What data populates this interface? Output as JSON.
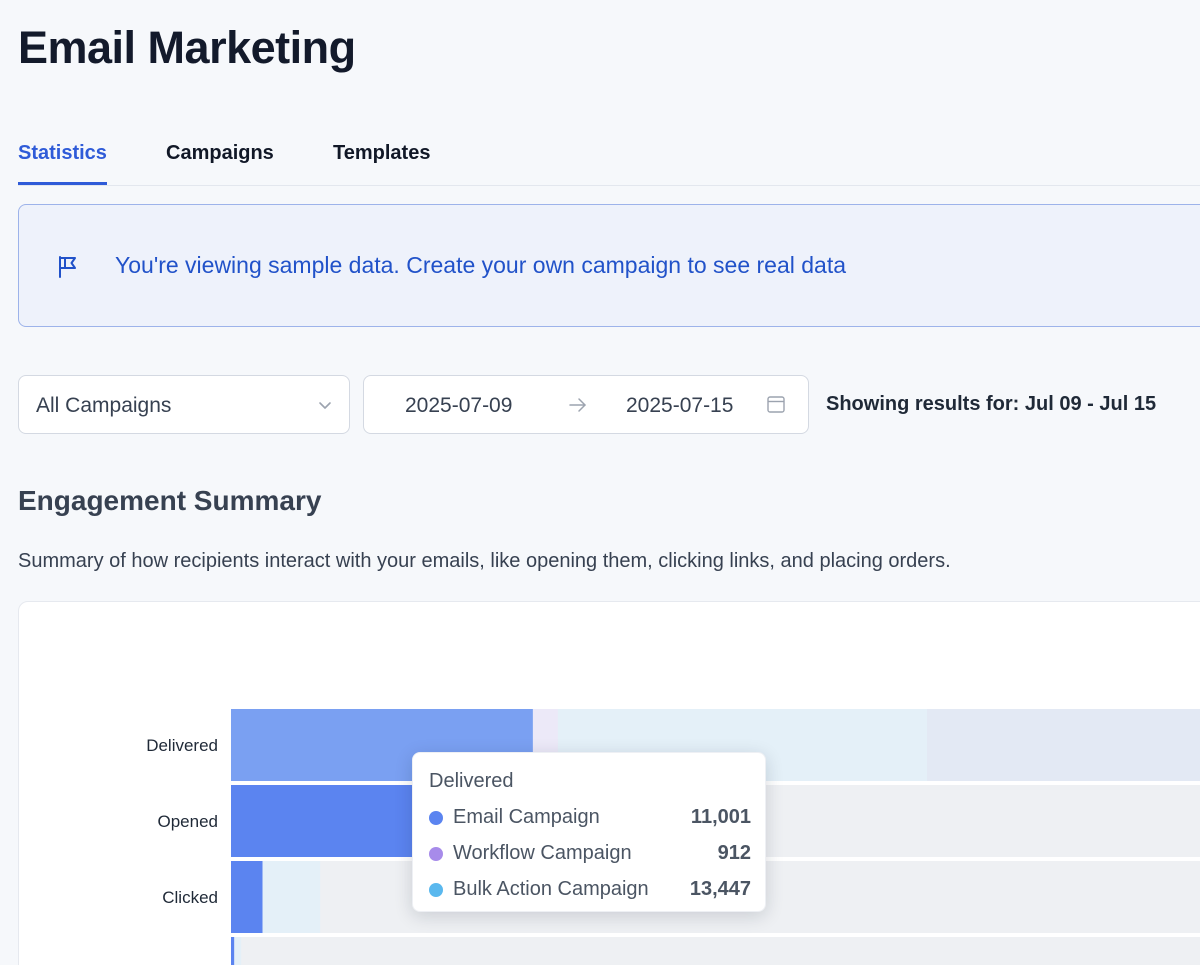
{
  "page": {
    "title": "Email Marketing"
  },
  "tabs": [
    {
      "label": "Statistics",
      "active": true
    },
    {
      "label": "Campaigns",
      "active": false
    },
    {
      "label": "Templates",
      "active": false
    }
  ],
  "banner": {
    "icon": "flag-icon",
    "text": "You're viewing sample data. Create your own campaign to see real data"
  },
  "filters": {
    "campaign_select": {
      "value": "All Campaigns",
      "icon": "chevron-down-icon"
    },
    "date_range": {
      "start": "2025-07-09",
      "end": "2025-07-15",
      "separator_icon": "arrow-right-icon",
      "calendar_icon": "calendar-icon"
    },
    "results_text": "Showing results for: Jul 09 - Jul 15"
  },
  "section": {
    "title": "Engagement Summary",
    "description": "Summary of how recipients interact with your emails, like opening them, clicking links, and placing orders."
  },
  "colors": {
    "accent": "#2f5bd8",
    "email_campaign": "#5b84f0",
    "workflow_campaign": "#a78bea",
    "bulk_action_campaign": "#5ab8ee"
  },
  "chart_data": {
    "type": "bar",
    "orientation": "horizontal",
    "stacked": true,
    "categories": [
      "Delivered",
      "Opened",
      "Clicked",
      ""
    ],
    "series": [
      {
        "name": "Email Campaign",
        "color": "#5b84f0",
        "values": [
          11001,
          7900,
          1150,
          120
        ]
      },
      {
        "name": "Workflow Campaign",
        "color": "#a78bea",
        "values": [
          912,
          0,
          0,
          0
        ]
      },
      {
        "name": "Bulk Action Campaign",
        "color": "#5ab8ee",
        "values": [
          13447,
          0,
          2100,
          250
        ]
      }
    ],
    "tooltip": {
      "category": "Delivered",
      "rows": [
        {
          "name": "Email Campaign",
          "color": "#5b84f0",
          "value": "11,001"
        },
        {
          "name": "Workflow Campaign",
          "color": "#a78bea",
          "value": "912"
        },
        {
          "name": "Bulk Action Campaign",
          "color": "#5ab8ee",
          "value": "13,447"
        }
      ]
    }
  }
}
